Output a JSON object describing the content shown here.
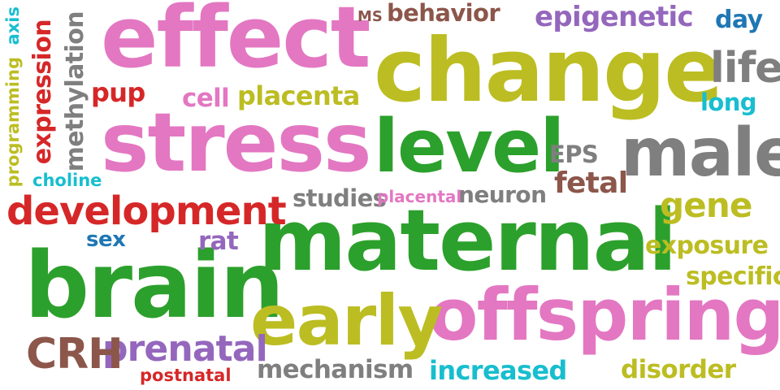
{
  "palette": {
    "pink": "#e377c2",
    "olive": "#bcbd22",
    "green": "#2ca02c",
    "red": "#d62728",
    "gray": "#7f7f7f",
    "purple": "#9467bd",
    "brown": "#8c564b",
    "cyan": "#17becf",
    "blue": "#1f77b4"
  },
  "words": [
    {
      "text": "maternal",
      "color": "#2ca02c"
    },
    {
      "text": "change",
      "color": "#bcbd22"
    },
    {
      "text": "stress",
      "color": "#e377c2"
    },
    {
      "text": "effect",
      "color": "#e377c2"
    },
    {
      "text": "brain",
      "color": "#2ca02c"
    },
    {
      "text": "offspring",
      "color": "#e377c2"
    },
    {
      "text": "early",
      "color": "#bcbd22"
    },
    {
      "text": "level",
      "color": "#2ca02c"
    },
    {
      "text": "male",
      "color": "#7f7f7f"
    },
    {
      "text": "development",
      "color": "#d62728"
    },
    {
      "text": "prenatal",
      "color": "#9467bd"
    },
    {
      "text": "CRH",
      "color": "#8c564b"
    },
    {
      "text": "epigenetic",
      "color": "#9467bd"
    },
    {
      "text": "life",
      "color": "#7f7f7f"
    },
    {
      "text": "gene",
      "color": "#bcbd22"
    },
    {
      "text": "exposure",
      "color": "#bcbd22"
    },
    {
      "text": "behavior",
      "color": "#8c564b"
    },
    {
      "text": "fetal",
      "color": "#8c564b"
    },
    {
      "text": "mechanism",
      "color": "#7f7f7f"
    },
    {
      "text": "increased",
      "color": "#17becf"
    },
    {
      "text": "disorder",
      "color": "#bcbd22"
    },
    {
      "text": "specific",
      "color": "#bcbd22"
    },
    {
      "text": "placenta",
      "color": "#bcbd22"
    },
    {
      "text": "neuron",
      "color": "#7f7f7f"
    },
    {
      "text": "studies",
      "color": "#7f7f7f"
    },
    {
      "text": "long",
      "color": "#17becf"
    },
    {
      "text": "day",
      "color": "#1f77b4"
    },
    {
      "text": "cell",
      "color": "#e377c2"
    },
    {
      "text": "pup",
      "color": "#d62728"
    },
    {
      "text": "rat",
      "color": "#9467bd"
    },
    {
      "text": "sex",
      "color": "#1f77b4"
    },
    {
      "text": "EPS",
      "color": "#7f7f7f"
    },
    {
      "text": "placental",
      "color": "#e377c2"
    },
    {
      "text": "postnatal",
      "color": "#d62728"
    },
    {
      "text": "choline",
      "color": "#17becf"
    },
    {
      "text": "MS",
      "color": "#8c564b"
    },
    {
      "text": "expression",
      "color": "#d62728"
    },
    {
      "text": "methylation",
      "color": "#7f7f7f"
    },
    {
      "text": "programming",
      "color": "#bcbd22"
    },
    {
      "text": "axis",
      "color": "#17becf"
    }
  ]
}
